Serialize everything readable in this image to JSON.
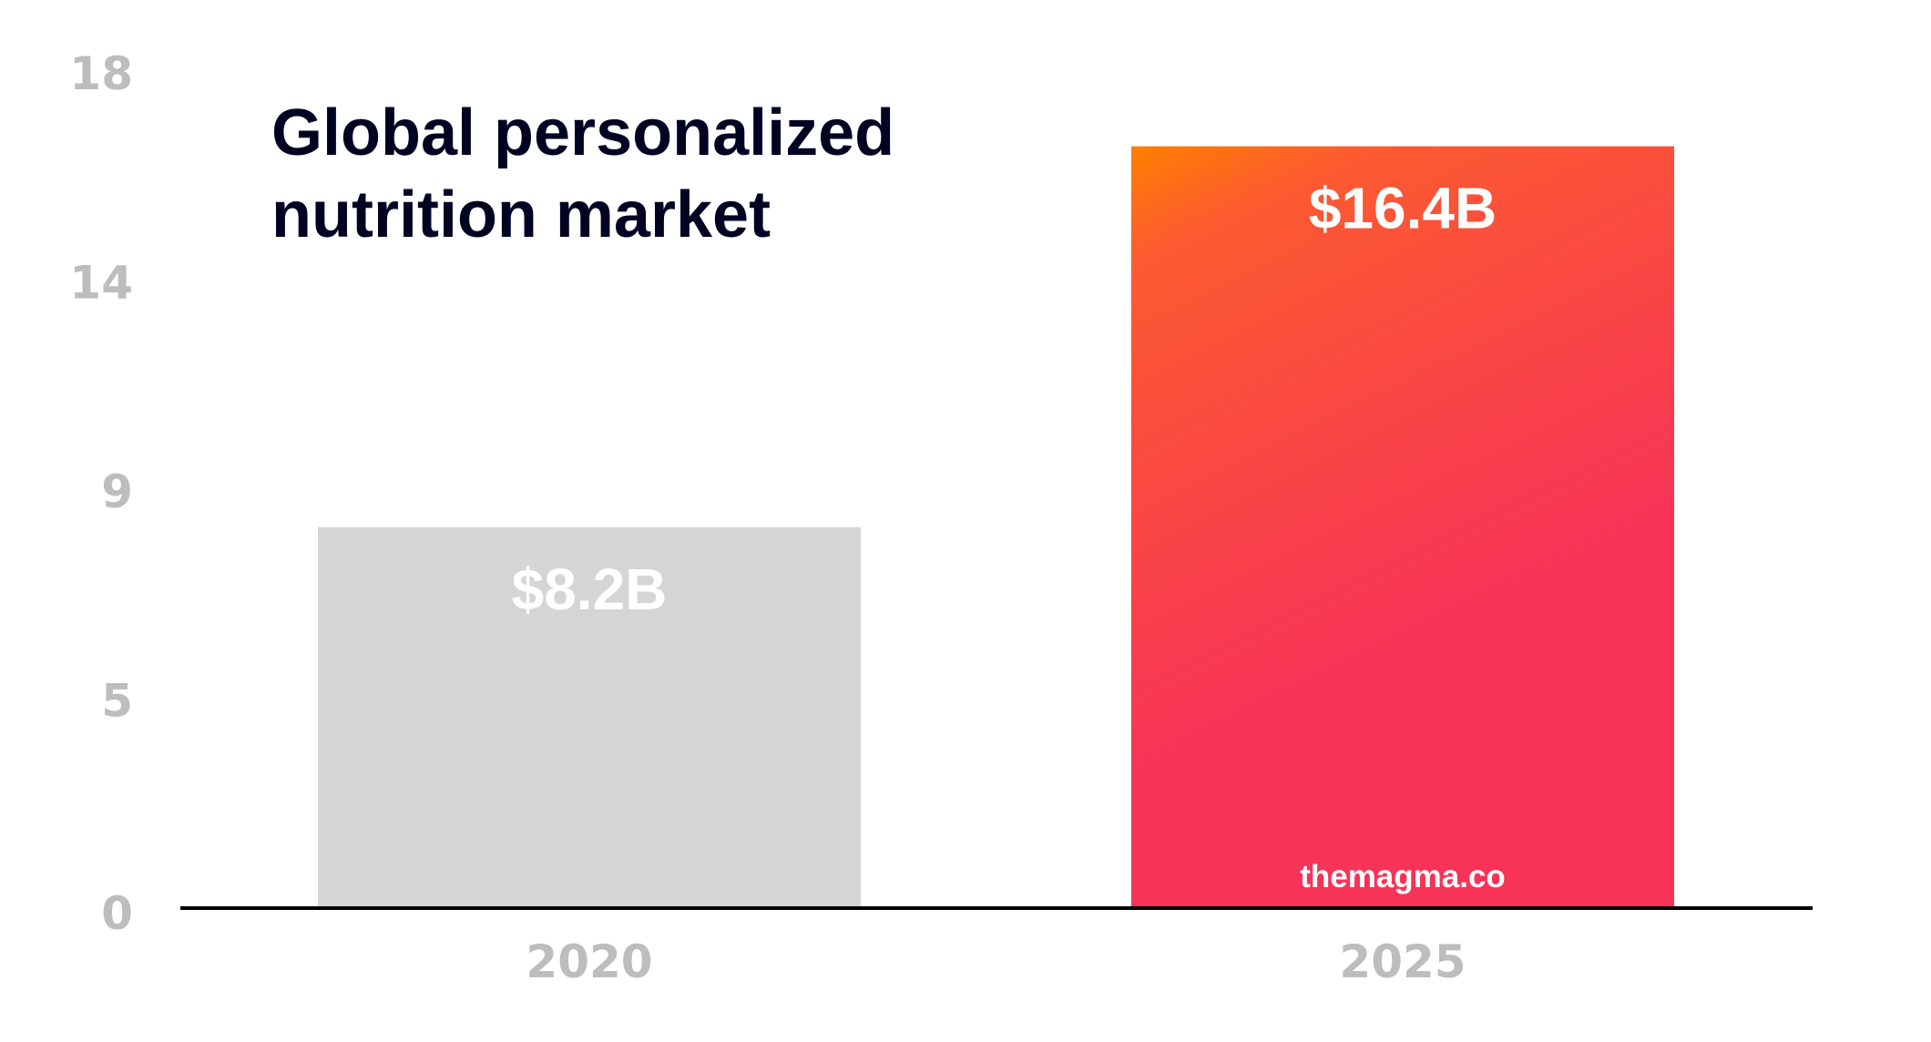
{
  "chart_data": {
    "type": "bar",
    "title": "Global personalized nutrition market",
    "title_lines": [
      "Global personalized",
      "nutrition market"
    ],
    "categories": [
      "2020",
      "2025"
    ],
    "values": [
      8.2,
      16.4
    ],
    "value_labels": [
      "$8.2B",
      "$16.4B"
    ],
    "unit": "billion USD",
    "xlabel": "",
    "ylabel": "",
    "ylim": [
      0,
      18
    ],
    "yticks": [
      0,
      4.5,
      9,
      13.5,
      18
    ],
    "ytick_labels": [
      "0",
      "5",
      "9",
      "14",
      "18"
    ],
    "grid": false,
    "legend": "none",
    "bar_colors": [
      "#d5d5d5",
      "gradient"
    ],
    "gradient_colors": [
      "#ff8000",
      "#fc5a30",
      "#f73358"
    ],
    "annotation": "themagma.co"
  }
}
